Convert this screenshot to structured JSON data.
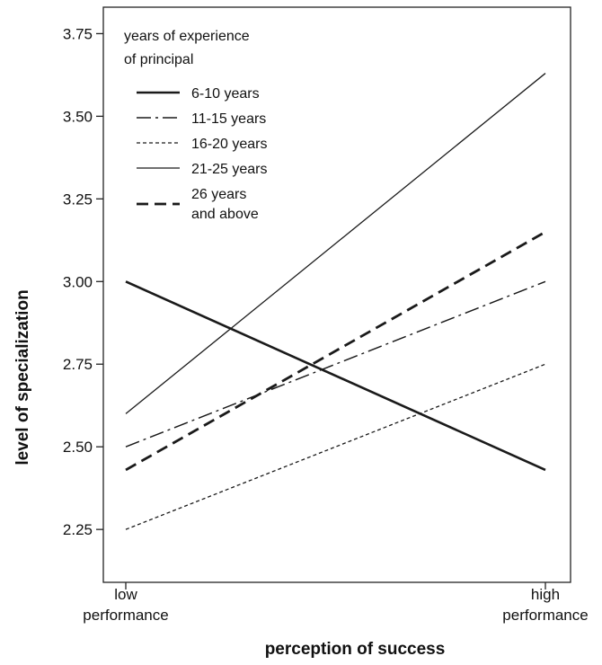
{
  "chart_data": {
    "type": "line",
    "title": "",
    "xlabel": "perception of success",
    "ylabel": "level of specialization",
    "x_categories": [
      [
        "low",
        "performance"
      ],
      [
        "high",
        "performance"
      ]
    ],
    "yticks": [
      "2.25",
      "2.50",
      "2.75",
      "3.00",
      "3.25",
      "3.50",
      "3.75"
    ],
    "ylim": [
      2.09,
      3.83
    ],
    "grid": false,
    "legend": {
      "placement": "top-left",
      "title_lines": [
        "years of experience",
        "of principal"
      ],
      "entries": [
        {
          "label_lines": [
            "6-10 years"
          ]
        },
        {
          "label_lines": [
            "11-15 years"
          ]
        },
        {
          "label_lines": [
            "16-20 years"
          ]
        },
        {
          "label_lines": [
            "21-25 years"
          ]
        },
        {
          "label_lines": [
            "26 years",
            "and above"
          ]
        }
      ]
    },
    "series": [
      {
        "legend_index": 0,
        "values": [
          3.0,
          2.43
        ],
        "color": "#1a1a1a",
        "style": "solid-thick"
      },
      {
        "legend_index": 1,
        "values": [
          2.5,
          3.0
        ],
        "color": "#1a1a1a",
        "style": "dash-dot"
      },
      {
        "legend_index": 2,
        "values": [
          2.25,
          2.75
        ],
        "color": "#1a1a1a",
        "style": "short-dash"
      },
      {
        "legend_index": 3,
        "values": [
          2.6,
          3.63
        ],
        "color": "#1a1a1a",
        "style": "solid-thin"
      },
      {
        "legend_index": 4,
        "values": [
          2.43,
          3.15
        ],
        "color": "#1a1a1a",
        "style": "long-dash-thick"
      }
    ]
  }
}
